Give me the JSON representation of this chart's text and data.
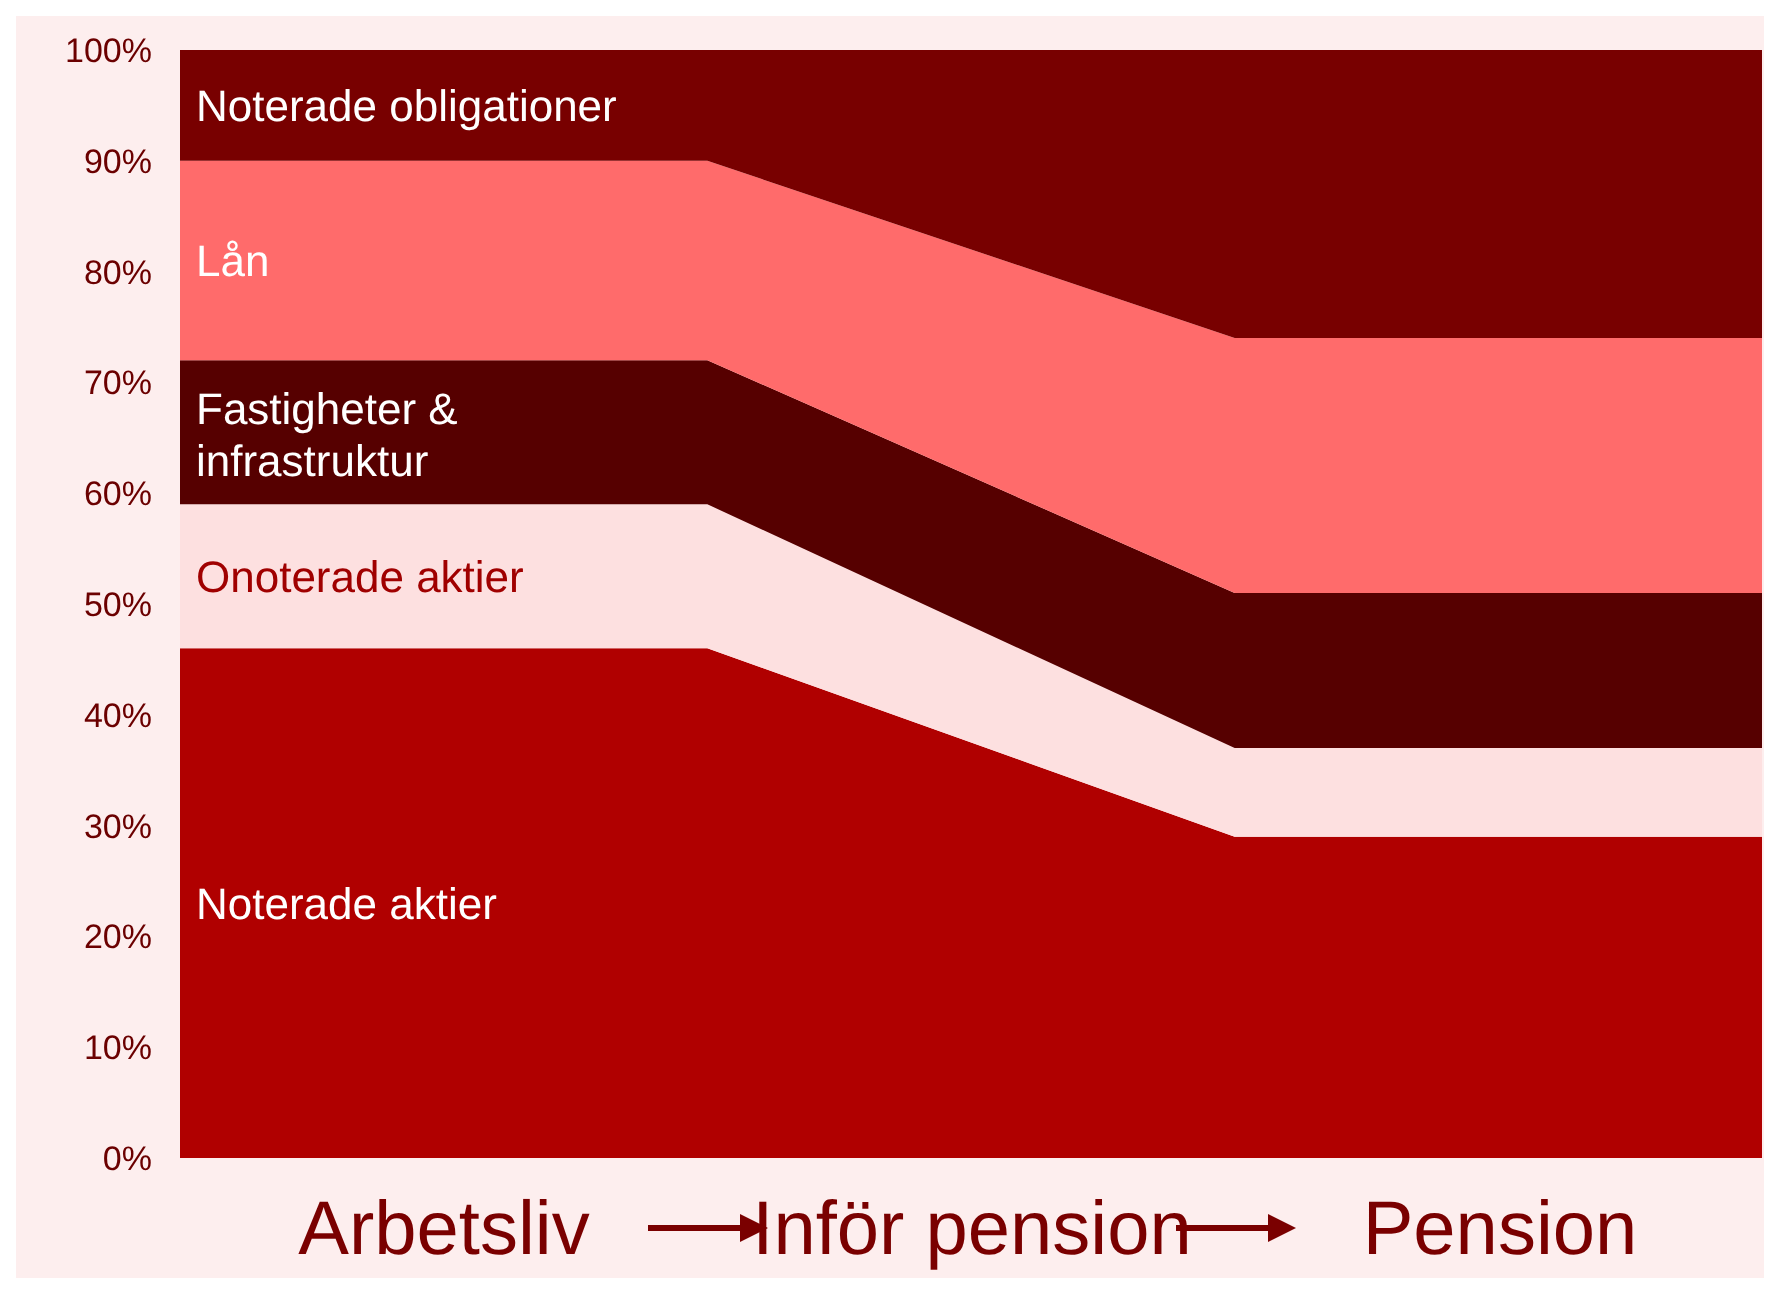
{
  "chart_data": {
    "type": "area",
    "stacked": true,
    "categories": [
      null,
      null,
      null,
      null
    ],
    "series": [
      {
        "name": "Noterade aktier",
        "color": "#b00000",
        "values": [
          46,
          46,
          29,
          29
        ]
      },
      {
        "name": "Onoterade aktier",
        "color": "#fde0e0",
        "values": [
          13,
          13,
          8,
          8
        ]
      },
      {
        "name": "Fastigheter & infrastruktur",
        "color": "#560000",
        "values": [
          13,
          13,
          14,
          14
        ]
      },
      {
        "name": "Lån",
        "color": "#ff6b6b",
        "values": [
          18,
          18,
          23,
          23
        ]
      },
      {
        "name": "Noterade obligationer",
        "color": "#780000",
        "values": [
          10,
          10,
          26,
          26
        ]
      }
    ],
    "ylim": [
      0,
      100
    ],
    "yticks": [
      {
        "value": 0,
        "label": "0%"
      },
      {
        "value": 10,
        "label": "10%"
      },
      {
        "value": 20,
        "label": "20%"
      },
      {
        "value": 30,
        "label": "30%"
      },
      {
        "value": 40,
        "label": "40%"
      },
      {
        "value": 50,
        "label": "50%"
      },
      {
        "value": 60,
        "label": "60%"
      },
      {
        "value": 70,
        "label": "70%"
      },
      {
        "value": 80,
        "label": "80%"
      },
      {
        "value": 90,
        "label": "90%"
      },
      {
        "value": 100,
        "label": "100%"
      }
    ],
    "tick_labels": "y",
    "grid": false,
    "legend": false,
    "annotations": [
      "Arbetsliv",
      "Inför pension",
      "Pension"
    ]
  }
}
